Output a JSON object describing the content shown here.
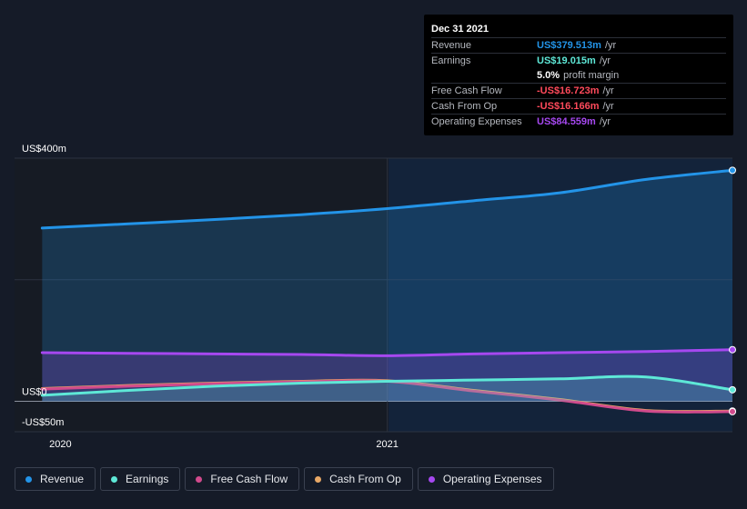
{
  "tooltip": {
    "date": "Dec 31 2021",
    "rows": [
      {
        "label": "Revenue",
        "value": "US$379.513m",
        "unit": "/yr",
        "color": "#2394e8"
      },
      {
        "label": "Earnings",
        "value": "US$19.015m",
        "unit": "/yr",
        "color": "#5ee8d7"
      },
      {
        "label": "",
        "value": "5.0%",
        "unit": "profit margin",
        "color": "#ffffff"
      },
      {
        "label": "Free Cash Flow",
        "value": "-US$16.723m",
        "unit": "/yr",
        "color": "#ff4a5b"
      },
      {
        "label": "Cash From Op",
        "value": "-US$16.166m",
        "unit": "/yr",
        "color": "#ff4a5b"
      },
      {
        "label": "Operating Expenses",
        "value": "US$84.559m",
        "unit": "/yr",
        "color": "#a648f0"
      }
    ]
  },
  "legend": [
    {
      "label": "Revenue",
      "color": "#2394e8"
    },
    {
      "label": "Earnings",
      "color": "#5ee8d7"
    },
    {
      "label": "Free Cash Flow",
      "color": "#d14a8c"
    },
    {
      "label": "Cash From Op",
      "color": "#e8a866"
    },
    {
      "label": "Operating Expenses",
      "color": "#a648f0"
    }
  ],
  "chart_data": {
    "type": "area",
    "y_tick_labels": [
      "US$400m",
      "US$0",
      "-US$50m"
    ],
    "y_ticks": [
      400,
      0,
      -50
    ],
    "ylim": [
      -50,
      400
    ],
    "x_tick_labels": [
      "2020",
      "2021"
    ],
    "x_ticks": [
      2020.0,
      2021.0
    ],
    "xlim": [
      2019.92,
      2022.0
    ],
    "highlight_start": 2021.0,
    "grid": true,
    "series": [
      {
        "name": "Revenue",
        "color": "#2394e8",
        "filled": true,
        "x": [
          2020.0,
          2020.25,
          2020.5,
          2020.75,
          2021.0,
          2021.25,
          2021.5,
          2021.75,
          2022.0
        ],
        "values": [
          285,
          292,
          299,
          307,
          317,
          330,
          343,
          365,
          380
        ]
      },
      {
        "name": "Operating Expenses",
        "color": "#a648f0",
        "filled": true,
        "x": [
          2020.0,
          2020.25,
          2020.5,
          2020.75,
          2021.0,
          2021.25,
          2021.5,
          2021.75,
          2022.0
        ],
        "values": [
          80,
          79,
          78,
          77,
          75,
          78,
          80,
          82,
          85
        ]
      },
      {
        "name": "Cash From Op",
        "color": "#e8a866",
        "filled": false,
        "x": [
          2020.0,
          2020.25,
          2020.5,
          2020.75,
          2021.0,
          2021.25,
          2021.5,
          2021.75,
          2022.0
        ],
        "values": [
          21,
          26,
          30,
          33,
          34,
          18,
          3,
          -15,
          -16
        ]
      },
      {
        "name": "Free Cash Flow",
        "color": "#d14a8c",
        "filled": false,
        "x": [
          2020.0,
          2020.25,
          2020.5,
          2020.75,
          2021.0,
          2021.25,
          2021.5,
          2021.75,
          2022.0
        ],
        "values": [
          20,
          25,
          29,
          32,
          33,
          17,
          2,
          -16,
          -17
        ]
      },
      {
        "name": "Earnings",
        "color": "#5ee8d7",
        "filled": true,
        "x": [
          2020.0,
          2020.25,
          2020.5,
          2020.75,
          2021.0,
          2021.25,
          2021.5,
          2021.75,
          2022.0
        ],
        "values": [
          10,
          18,
          25,
          30,
          33,
          35,
          37,
          40,
          19
        ]
      }
    ]
  }
}
